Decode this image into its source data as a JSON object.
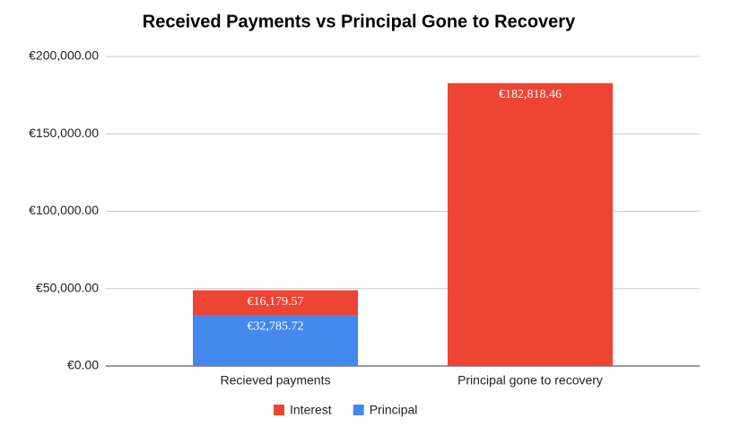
{
  "chart_data": {
    "type": "stacked_bar",
    "title": "Received Payments vs Principal Gone to Recovery",
    "categories": [
      "Recieved payments",
      "Principal gone to recovery"
    ],
    "series": [
      {
        "name": "Interest",
        "color": "#ee4433",
        "values": [
          16179.57,
          182818.46
        ],
        "value_labels": [
          "€16,179.57",
          "€182,818.46"
        ]
      },
      {
        "name": "Principal",
        "color": "#4488ee",
        "values": [
          32785.72,
          null
        ],
        "value_labels": [
          "€32,785.72",
          null
        ]
      }
    ],
    "ylim": [
      0,
      200000
    ],
    "yticks": [
      {
        "value": 0,
        "label": "€0.00"
      },
      {
        "value": 50000,
        "label": "€50,000.00"
      },
      {
        "value": 100000,
        "label": "€100,000.00"
      },
      {
        "value": 150000,
        "label": "€150,000.00"
      },
      {
        "value": 200000,
        "label": "€200,000.00"
      }
    ],
    "grid": true,
    "legend": "bottom"
  }
}
